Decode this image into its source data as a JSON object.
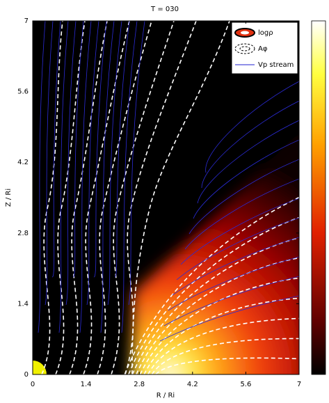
{
  "chart_data": {
    "type": "field",
    "title": "T = 030",
    "xlabel": "R / Ri",
    "ylabel": "Z / Ri",
    "xlim": [
      0,
      7
    ],
    "ylim": [
      0,
      7
    ],
    "xticks": [
      0,
      1.4,
      2.8,
      4.2,
      5.6,
      7
    ],
    "yticks": [
      0,
      1.4,
      2.8,
      4.2,
      5.6,
      7
    ],
    "legend": [
      "logρ",
      "Aφ",
      "Vp stream"
    ],
    "legend_position": "upper right"
  }
}
